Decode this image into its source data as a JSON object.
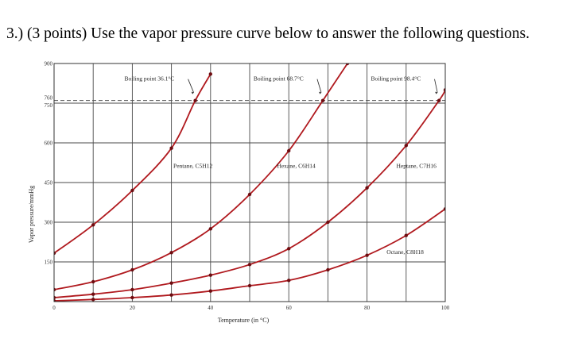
{
  "question": "3.) (3 points) Use the vapor pressure curve below to answer the following questions.",
  "chart_data": {
    "type": "line",
    "xlabel": "Temperature (in °C)",
    "ylabel": "Vapor pressure/mmHg",
    "xlim": [
      0,
      100
    ],
    "ylim": [
      0,
      900
    ],
    "x_ticks": [
      0,
      20,
      40,
      60,
      80,
      100
    ],
    "y_ticks": [
      150,
      300,
      450,
      600,
      750,
      760,
      900
    ],
    "reference_line": 760,
    "series": [
      {
        "name": "Pentane, C5H12",
        "x": [
          0,
          10,
          20,
          30,
          36.1,
          40
        ],
        "y": [
          183,
          290,
          420,
          580,
          760,
          860
        ]
      },
      {
        "name": "Hexane, C6H14",
        "x": [
          0,
          10,
          20,
          30,
          40,
          50,
          60,
          68.7,
          75
        ],
        "y": [
          45,
          75,
          120,
          185,
          275,
          405,
          570,
          760,
          900
        ]
      },
      {
        "name": "Heptane, C7H16",
        "x": [
          0,
          10,
          20,
          30,
          40,
          50,
          60,
          70,
          80,
          90,
          98.4,
          100
        ],
        "y": [
          15,
          28,
          45,
          70,
          100,
          140,
          200,
          300,
          430,
          590,
          760,
          800
        ]
      },
      {
        "name": "Octane, C8H18",
        "x": [
          0,
          10,
          20,
          30,
          40,
          50,
          60,
          70,
          80,
          90,
          100
        ],
        "y": [
          3,
          8,
          15,
          25,
          40,
          60,
          80,
          120,
          175,
          250,
          350
        ]
      }
    ],
    "annotations": [
      "Boiling point 36.1°C",
      "Boiling point 68.7°C",
      "Boiling point 98.4°C"
    ],
    "colors": {
      "curve": "#b0191e",
      "grid": "#4a4a4a",
      "point": "#6e0c10"
    }
  }
}
